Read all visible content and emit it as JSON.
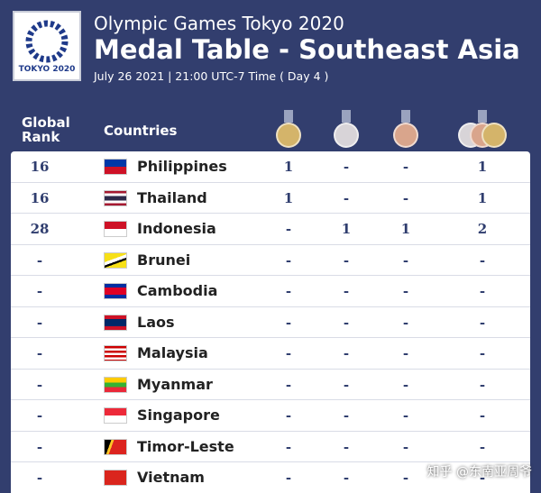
{
  "header": {
    "logo_text": "TOKYO 2020",
    "title": "Olympic Games Tokyo 2020",
    "subtitle": "Medal Table - Southeast Asia",
    "date": "July 26 2021 | 21:00 UTC-7 Time ( Day 4 )"
  },
  "table": {
    "columns": [
      "Global Rank",
      "Countries"
    ],
    "rows": [
      [
        "16",
        "Philippines",
        "1",
        "-",
        "-",
        "1"
      ],
      [
        "16",
        "Thailand",
        "1",
        "-",
        "-",
        "1"
      ],
      [
        "28",
        "Indonesia",
        "-",
        "1",
        "1",
        "2"
      ],
      [
        "-",
        "Brunei",
        "-",
        "-",
        "-",
        "-"
      ],
      [
        "-",
        "Cambodia",
        "-",
        "-",
        "-",
        "-"
      ],
      [
        "-",
        "Laos",
        "-",
        "-",
        "-",
        "-"
      ],
      [
        "-",
        "Malaysia",
        "-",
        "-",
        "-",
        "-"
      ],
      [
        "-",
        "Myanmar",
        "-",
        "-",
        "-",
        "-"
      ],
      [
        "-",
        "Singapore",
        "-",
        "-",
        "-",
        "-"
      ],
      [
        "-",
        "Timor-Leste",
        "-",
        "-",
        "-",
        "-"
      ],
      [
        "-",
        "Vietnam",
        "-",
        "-",
        "-",
        "-"
      ]
    ]
  },
  "watermark": "知乎 @东南亚周爷"
}
